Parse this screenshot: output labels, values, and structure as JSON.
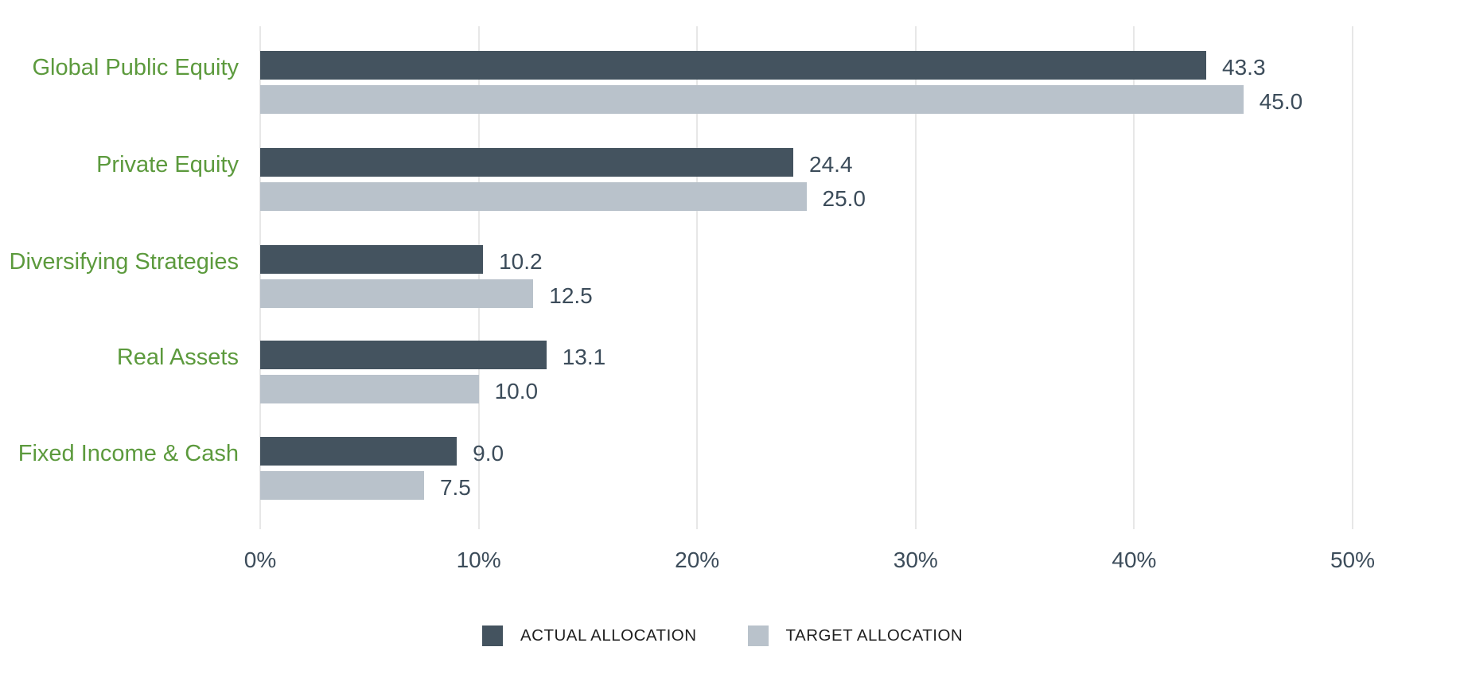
{
  "chart_data": {
    "type": "bar",
    "orientation": "horizontal",
    "title": "",
    "categories": [
      "Global Public Equity",
      "Private Equity",
      "Diversifying Strategies",
      "Real Assets",
      "Fixed Income & Cash"
    ],
    "series": [
      {
        "name": "ACTUAL ALLOCATION",
        "color": "#44535F",
        "values": [
          43.3,
          24.4,
          10.2,
          13.1,
          9.0
        ]
      },
      {
        "name": "TARGET ALLOCATION",
        "color": "#B9C2CB",
        "values": [
          45.0,
          25.0,
          12.5,
          10.0,
          7.5
        ]
      }
    ],
    "x_ticks": [
      {
        "label": "0%",
        "value": 0
      },
      {
        "label": "10%",
        "value": 10
      },
      {
        "label": "20%",
        "value": 20
      },
      {
        "label": "30%",
        "value": 30
      },
      {
        "label": "40%",
        "value": 40
      },
      {
        "label": "50%",
        "value": 50
      }
    ],
    "xlim": [
      0,
      50
    ],
    "value_labels": true,
    "value_label_format": "one_decimal",
    "grid": "vertical",
    "legend_position": "bottom",
    "colors": {
      "category_label": "#5C9A3D",
      "value_label": "#3C4C5A",
      "axis_label": "#3C4C5A",
      "gridline": "#E7E7E7",
      "legend_text": "#1F1F1F",
      "background": "#FFFFFF"
    }
  }
}
